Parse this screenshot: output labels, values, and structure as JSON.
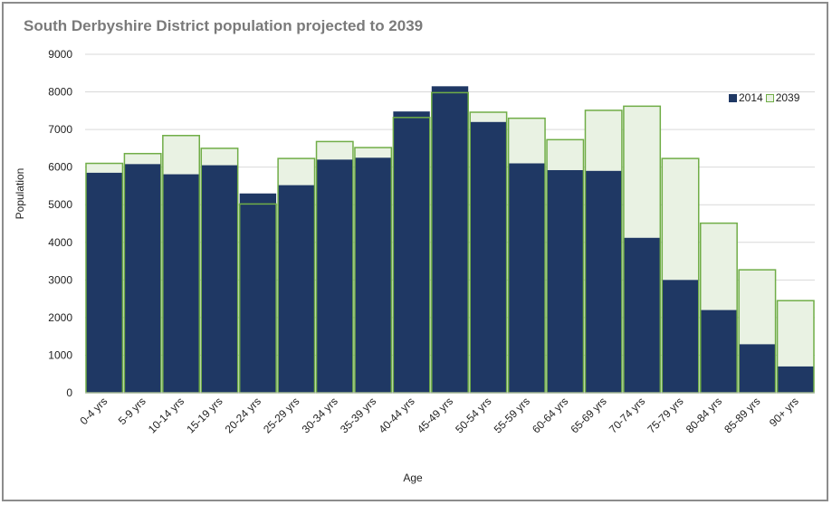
{
  "chart_data": {
    "type": "bar",
    "title": "South Derbyshire District population projected to 2039",
    "xlabel": "Age",
    "ylabel": "Population",
    "ylim": [
      0,
      9000
    ],
    "yticks": [
      "0",
      "1000",
      "2000",
      "3000",
      "4000",
      "5000",
      "6000",
      "7000",
      "8000",
      "9000"
    ],
    "grid": true,
    "legend_position": "top-right",
    "categories": [
      "0-4 yrs",
      "5-9 yrs",
      "10-14 yrs",
      "15-19 yrs",
      "20-24 yrs",
      "25-29 yrs",
      "30-34 yrs",
      "35-39 yrs",
      "40-44 yrs",
      "45-49 yrs",
      "50-54 yrs",
      "55-59 yrs",
      "60-64 yrs",
      "65-69 yrs",
      "70-74 yrs",
      "75-79 yrs",
      "80-84 yrs",
      "85-89 yrs",
      "90+ yrs"
    ],
    "series": [
      {
        "name": "2014",
        "color": "#1f3864",
        "values": [
          5850,
          6080,
          5810,
          6050,
          5300,
          5520,
          6200,
          6250,
          7480,
          8150,
          7200,
          6100,
          5920,
          5900,
          4120,
          3000,
          2200,
          1290,
          700
        ]
      },
      {
        "name": "2039",
        "color": "#70ad47",
        "fill": "#e9f2e3",
        "values": [
          6100,
          6360,
          6840,
          6500,
          5020,
          6230,
          6680,
          6520,
          7320,
          7980,
          7460,
          7300,
          6730,
          7510,
          7620,
          6230,
          4510,
          3270,
          2450
        ]
      }
    ]
  }
}
